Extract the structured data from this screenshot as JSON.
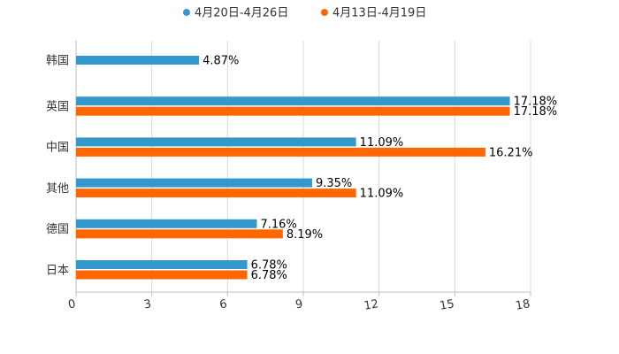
{
  "chart_data": {
    "type": "bar",
    "orientation": "horizontal",
    "title": "",
    "xlabel": "",
    "ylabel": "",
    "xlim": [
      0,
      18
    ],
    "x_ticks": [
      "0",
      "3",
      "6",
      "9",
      "12",
      "15",
      "18"
    ],
    "grid": true,
    "legend_position": "top",
    "categories": [
      "韩国",
      "英国",
      "中国",
      "其他",
      "德国",
      "日本"
    ],
    "series": [
      {
        "name": "4月20日-4月26日",
        "color": "#3399cc",
        "values": [
          4.87,
          17.18,
          11.09,
          9.35,
          7.16,
          6.78
        ],
        "labels": [
          "4.87%",
          "17.18%",
          "11.09%",
          "9.35%",
          "7.16%",
          "6.78%"
        ]
      },
      {
        "name": "4月13日-4月19日",
        "color": "#ff6600",
        "values": [
          null,
          17.18,
          16.21,
          11.09,
          8.19,
          6.78
        ],
        "labels": [
          "",
          "17.18%",
          "16.21%",
          "11.09%",
          "8.19%",
          "6.78%"
        ]
      }
    ]
  }
}
